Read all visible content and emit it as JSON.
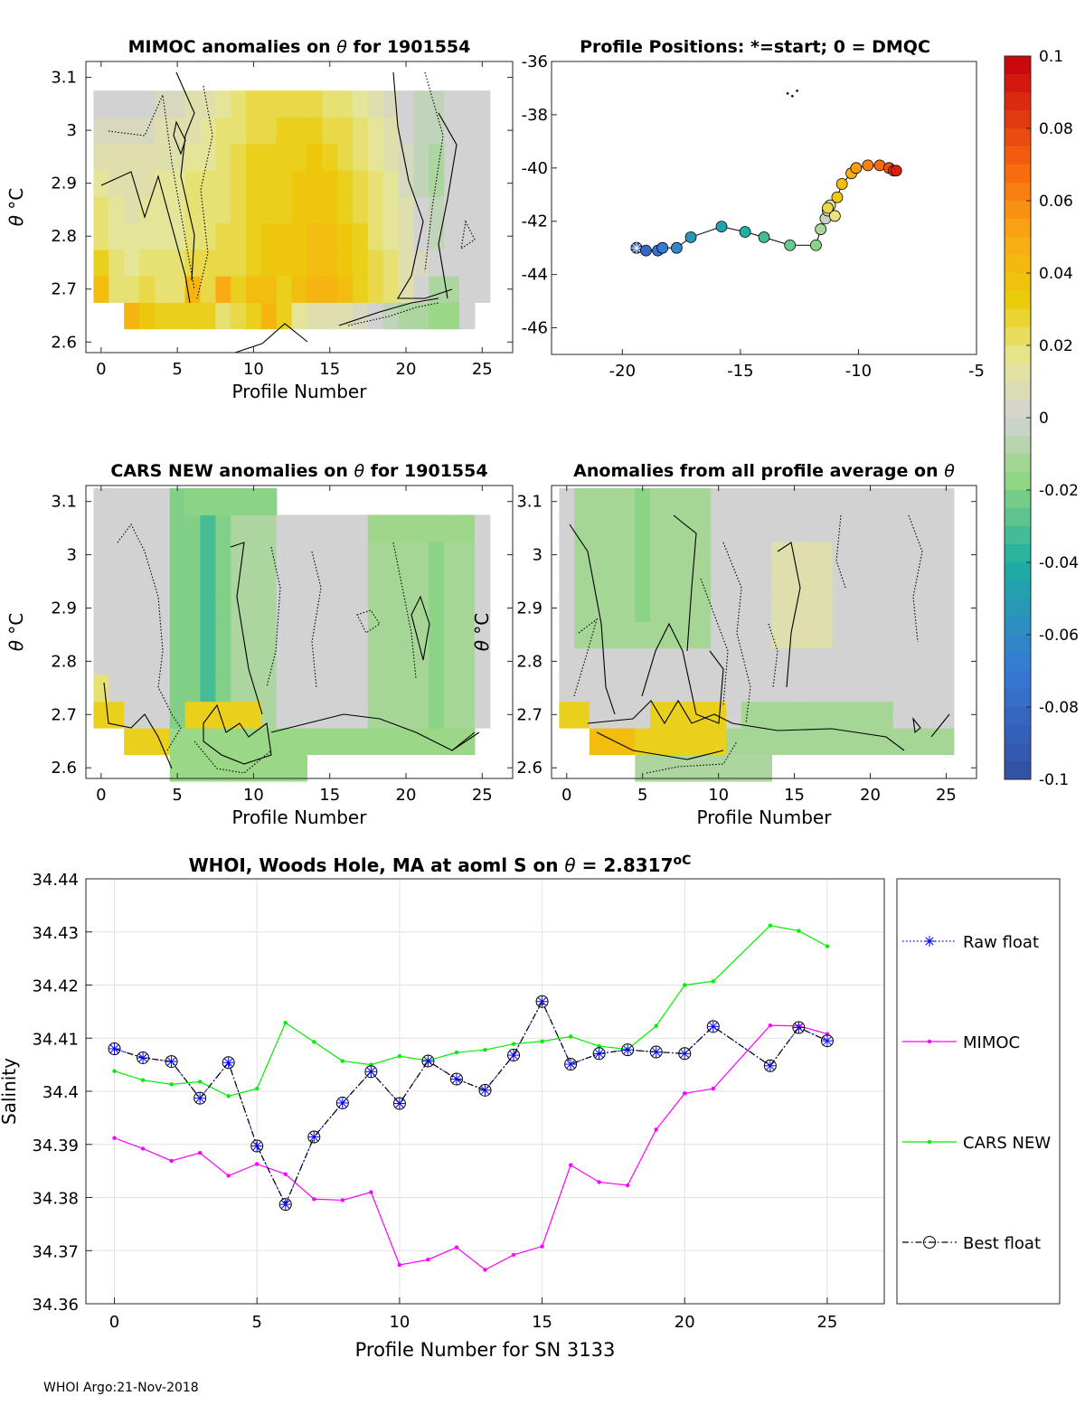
{
  "chart_data": [
    {
      "type": "heatmap",
      "id": "mimoc",
      "title_prefix": "MIMOC anomalies on ",
      "title_symbol": "θ",
      "title_suffix": "  for 1901554",
      "xlabel": "Profile Number",
      "ylabel_symbol": "θ",
      "ylabel_unit": "°C",
      "xlim": [
        -1,
        27
      ],
      "ylim": [
        2.58,
        3.13
      ],
      "xticks": [
        "0",
        "5",
        "10",
        "15",
        "20",
        "25"
      ],
      "yticks": [
        "2.6",
        "2.7",
        "2.8",
        "2.9",
        "3",
        "3.1"
      ],
      "mean_anomaly_rows": [
        {
          "theta": 2.65,
          "values": [
            null,
            null,
            0.045,
            0.035,
            0.03,
            0.03,
            0.03,
            0.03,
            0.02,
            0.025,
            0.03,
            0.045,
            0.03,
            0.015,
            0.01,
            0.01,
            0.01,
            0.005,
            0.0,
            -0.005,
            -0.01,
            -0.01,
            -0.015,
            -0.015,
            0.0,
            null
          ]
        },
        {
          "theta": 2.7,
          "values": [
            0.04,
            0.02,
            0.02,
            0.025,
            0.02,
            0.02,
            0.045,
            0.025,
            0.05,
            0.03,
            0.04,
            0.04,
            0.03,
            0.04,
            0.045,
            0.045,
            0.04,
            0.03,
            0.025,
            0.02,
            0.01,
            0.0,
            -0.01,
            -0.01,
            0.0,
            0.0
          ]
        },
        {
          "theta": 2.75,
          "values": [
            0.03,
            0.02,
            0.015,
            0.02,
            0.02,
            0.02,
            0.025,
            0.025,
            0.025,
            0.025,
            0.03,
            0.035,
            0.035,
            0.035,
            0.04,
            0.04,
            0.035,
            0.03,
            0.025,
            0.02,
            0.01,
            0.005,
            0.0,
            0.0,
            0.0,
            0.0
          ]
        },
        {
          "theta": 2.8,
          "values": [
            0.02,
            0.015,
            0.015,
            0.015,
            0.015,
            0.015,
            0.02,
            0.02,
            0.025,
            0.025,
            0.03,
            0.035,
            0.035,
            0.035,
            0.04,
            0.04,
            0.035,
            0.03,
            0.02,
            0.015,
            0.01,
            0.0,
            -0.005,
            0.0,
            0.0,
            0.0
          ]
        },
        {
          "theta": 2.85,
          "values": [
            0.02,
            0.015,
            0.01,
            0.015,
            0.015,
            0.015,
            0.02,
            0.02,
            0.02,
            0.025,
            0.03,
            0.03,
            0.03,
            0.035,
            0.035,
            0.035,
            0.03,
            0.025,
            0.02,
            0.015,
            0.01,
            0.0,
            -0.005,
            0.0,
            0.0,
            0.0
          ]
        },
        {
          "theta": 2.9,
          "values": [
            0.015,
            0.01,
            0.01,
            0.01,
            0.015,
            0.015,
            0.02,
            0.02,
            0.02,
            0.025,
            0.03,
            0.03,
            0.03,
            0.035,
            0.035,
            0.035,
            0.03,
            0.025,
            0.02,
            0.015,
            0.005,
            -0.005,
            -0.01,
            0.0,
            0.0,
            0.0
          ]
        },
        {
          "theta": 2.95,
          "values": [
            0.01,
            0.01,
            0.01,
            0.01,
            0.01,
            0.01,
            0.015,
            0.015,
            0.02,
            0.025,
            0.03,
            0.03,
            0.03,
            0.03,
            0.035,
            0.03,
            0.025,
            0.02,
            0.015,
            0.01,
            0.005,
            -0.005,
            -0.01,
            0.0,
            0.0,
            0.0
          ]
        },
        {
          "theta": 3.0,
          "values": [
            0.005,
            0.005,
            0.005,
            0.005,
            0.01,
            0.01,
            0.01,
            0.015,
            0.02,
            0.02,
            0.025,
            0.025,
            0.03,
            0.03,
            0.03,
            0.025,
            0.025,
            0.02,
            0.015,
            0.01,
            0.0,
            -0.005,
            -0.005,
            0.0,
            0.0,
            0.0
          ]
        },
        {
          "theta": 3.05,
          "values": [
            0.0,
            0.0,
            0.0,
            0.0,
            0.005,
            0.005,
            0.01,
            0.01,
            0.015,
            0.02,
            0.025,
            0.025,
            0.025,
            0.025,
            0.025,
            0.02,
            0.02,
            0.015,
            0.01,
            0.005,
            0.0,
            -0.005,
            -0.005,
            0.0,
            0.0,
            0.0
          ]
        }
      ]
    },
    {
      "type": "scatter",
      "id": "positions",
      "title": "Profile Positions: *=start; 0 = DMQC",
      "xlim": [
        -23,
        -5
      ],
      "ylim": [
        -47,
        -36
      ],
      "xticks": [
        "-20",
        "-15",
        "-10",
        "-5"
      ],
      "yticks": [
        "-36",
        "-38",
        "-40",
        "-42",
        "-44",
        "-46"
      ],
      "lon": [
        -19.4,
        -19.0,
        -18.5,
        -18.3,
        -17.7,
        -17.1,
        -15.8,
        -14.8,
        -14.0,
        -12.9,
        -11.8,
        -11.6,
        -11.4,
        -11.3,
        -11.2,
        -11.0,
        -11.3,
        -10.9,
        -10.7,
        -10.3,
        -10.1,
        -9.6,
        -9.1,
        -8.7,
        -8.5,
        -8.4
      ],
      "lat": [
        -43.0,
        -43.1,
        -43.1,
        -43.0,
        -43.0,
        -42.6,
        -42.2,
        -42.4,
        -42.6,
        -42.9,
        -42.9,
        -42.3,
        -41.9,
        -41.6,
        -41.4,
        -41.8,
        -41.5,
        -41.1,
        -40.6,
        -40.2,
        -40.0,
        -39.9,
        -39.9,
        -40.0,
        -40.1,
        -40.1
      ],
      "island_lon": [
        -13.0,
        -12.8,
        -12.6
      ],
      "island_lat": [
        -37.2,
        -37.3,
        -37.1
      ]
    },
    {
      "type": "heatmap",
      "id": "cars",
      "title_prefix": "CARS NEW anomalies on ",
      "title_symbol": "θ",
      "title_suffix": " for 1901554",
      "xlabel": "Profile Number",
      "ylabel_symbol": "θ",
      "ylabel_unit": "°C",
      "xlim": [
        -1,
        27
      ],
      "ylim": [
        2.58,
        3.13
      ],
      "xticks": [
        "0",
        "5",
        "10",
        "15",
        "20",
        "25"
      ],
      "yticks": [
        "2.6",
        "2.7",
        "2.8",
        "2.9",
        "3",
        "3.1"
      ]
    },
    {
      "type": "heatmap",
      "id": "allavg",
      "title_prefix": "Anomalies from all profile average on ",
      "title_symbol": "θ",
      "title_suffix": "",
      "xlabel": "Profile Number",
      "ylabel_symbol": "θ",
      "ylabel_unit": "°C",
      "xlim": [
        -1,
        27
      ],
      "ylim": [
        2.58,
        3.13
      ],
      "xticks": [
        "0",
        "5",
        "10",
        "15",
        "20",
        "25"
      ],
      "yticks": [
        "2.6",
        "2.7",
        "2.8",
        "2.9",
        "3",
        "3.1"
      ]
    },
    {
      "type": "colorbar",
      "id": "colorbar",
      "range": [
        -0.1,
        0.1
      ],
      "ticks": [
        "0.1",
        "0.08",
        "0.06",
        "0.04",
        "0.02",
        "0",
        "-0.02",
        "-0.04",
        "-0.06",
        "-0.08",
        "-0.1"
      ]
    },
    {
      "type": "line",
      "id": "salinity",
      "title_prefix": "WHOI, Woods Hole, MA at aoml S on ",
      "title_symbol": "θ",
      "title_suffix": " = 2.8317",
      "title_unit": "oC",
      "xlabel": "Profile Number for SN 3133",
      "ylabel": "Salinity",
      "xlim": [
        -1,
        27
      ],
      "ylim": [
        34.36,
        34.44
      ],
      "xticks": [
        "0",
        "5",
        "10",
        "15",
        "20",
        "25"
      ],
      "yticks": [
        "34.36",
        "34.37",
        "34.38",
        "34.39",
        "34.4",
        "34.41",
        "34.42",
        "34.43",
        "34.44"
      ],
      "x": [
        0,
        1,
        2,
        3,
        4,
        5,
        6,
        7,
        8,
        9,
        10,
        11,
        12,
        13,
        14,
        15,
        16,
        17,
        18,
        19,
        20,
        21,
        22,
        23,
        24,
        25
      ],
      "series": [
        {
          "name": "Raw float",
          "color": "#0000ff",
          "values": [
            34.408,
            34.4063,
            34.4056,
            34.3987,
            34.4054,
            34.3897,
            34.3787,
            34.3914,
            34.3978,
            34.4037,
            34.3977,
            34.4057,
            34.4023,
            34.4002,
            34.4068,
            34.4169,
            34.4051,
            34.4071,
            34.4078,
            34.4074,
            34.4071,
            34.4122,
            null,
            34.4048,
            34.412,
            34.4095
          ]
        },
        {
          "name": "MIMOC",
          "color": "#ff00ff",
          "values": [
            34.3912,
            34.3892,
            34.3869,
            34.3884,
            34.3841,
            34.3863,
            34.3844,
            34.3797,
            34.3795,
            34.381,
            34.3673,
            34.3683,
            34.3706,
            34.3664,
            34.3692,
            34.3708,
            34.3861,
            34.3829,
            34.3823,
            34.3928,
            34.3996,
            34.4005,
            null,
            34.4124,
            34.4123,
            34.4108
          ]
        },
        {
          "name": "CARS NEW",
          "color": "#00ee00",
          "values": [
            34.4038,
            34.4021,
            34.4013,
            34.4018,
            34.3991,
            34.4005,
            34.4129,
            34.4093,
            34.4057,
            34.405,
            34.4066,
            34.4058,
            34.4073,
            34.4078,
            34.4089,
            34.4094,
            34.4103,
            34.4085,
            34.4079,
            34.4123,
            34.42,
            34.4207,
            null,
            34.4312,
            34.4302,
            34.4273
          ]
        },
        {
          "name": "Best float",
          "color": "#000000",
          "values": [
            34.408,
            34.4063,
            34.4056,
            34.3987,
            34.4054,
            34.3897,
            34.3787,
            34.3914,
            34.3978,
            34.4037,
            34.3977,
            34.4057,
            34.4023,
            34.4002,
            34.4068,
            34.4169,
            34.4051,
            34.4071,
            34.4078,
            34.4074,
            34.4071,
            34.4122,
            null,
            34.4048,
            34.412,
            34.4095
          ]
        }
      ]
    }
  ],
  "footer": "WHOI Argo:21-Nov-2018"
}
